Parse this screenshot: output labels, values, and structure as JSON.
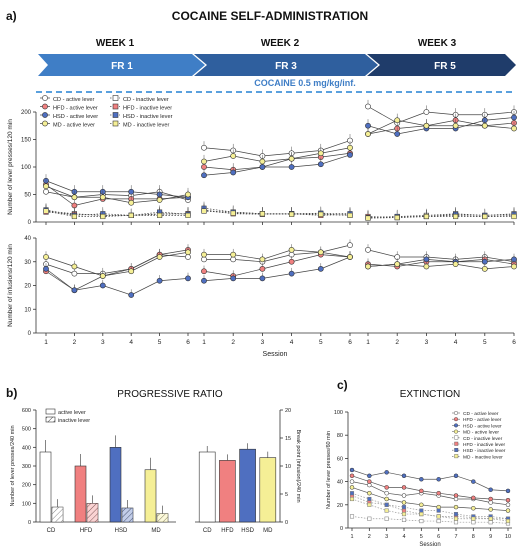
{
  "panel_labels": {
    "a": "a)",
    "b": "b)",
    "c": "c)"
  },
  "main_title": "COCAINE SELF-ADMINISTRATION",
  "weeks": [
    "WEEK 1",
    "WEEK 2",
    "WEEK 3"
  ],
  "fr_labels": [
    "FR 1",
    "FR 3",
    "FR 5"
  ],
  "dose_label": "COCAINE 0.5 mg/kg/inf.",
  "colors": {
    "CD": "#ffffff",
    "HFD": "#f08080",
    "HSD": "#4f6fc0",
    "MD": "#f5ef96",
    "banner_start": "#3d7cc4",
    "banner_end": "#1e3a66",
    "dashed": "#5aa0dd"
  },
  "legend_a": [
    "CD  - active lever",
    "CD  - inactive lever",
    "HFD - active lever",
    "HFD - inactive lever",
    "HSD - active lever",
    "HSD - inactive lever",
    "MD  - active lever",
    "MD  - inactive lever"
  ],
  "chart_data": [
    {
      "type": "line",
      "id": "lever-presses",
      "ylabel": "Number of lever presses/120 min",
      "ylim": [
        0,
        200
      ],
      "yticks": [
        0,
        50,
        100,
        150,
        200
      ],
      "x": [
        1,
        2,
        3,
        4,
        5,
        6
      ],
      "weeks": [
        {
          "series": [
            {
              "name": "CD - active lever",
              "values": [
                55,
                45,
                50,
                48,
                55,
                40
              ]
            },
            {
              "name": "HFD - active lever",
              "values": [
                68,
                30,
                42,
                42,
                42,
                45
              ]
            },
            {
              "name": "HSD - active lever",
              "values": [
                75,
                55,
                55,
                55,
                50,
                45
              ]
            },
            {
              "name": "MD - active lever",
              "values": [
                65,
                45,
                45,
                35,
                40,
                50
              ]
            },
            {
              "name": "CD - inactive lever",
              "values": [
                20,
                15,
                12,
                12,
                15,
                15
              ]
            },
            {
              "name": "HFD - inactive lever",
              "values": [
                18,
                14,
                12,
                12,
                14,
                15
              ]
            },
            {
              "name": "HSD - inactive lever",
              "values": [
                22,
                12,
                15,
                12,
                18,
                14
              ]
            },
            {
              "name": "MD - inactive lever",
              "values": [
                20,
                10,
                10,
                12,
                12,
                12
              ]
            }
          ]
        },
        {
          "series": [
            {
              "name": "CD - active lever",
              "values": [
                135,
                130,
                120,
                125,
                130,
                148
              ]
            },
            {
              "name": "HFD - active lever",
              "values": [
                100,
                95,
                100,
                115,
                118,
                125
              ]
            },
            {
              "name": "HSD - active lever",
              "values": [
                85,
                90,
                100,
                100,
                105,
                122
              ]
            },
            {
              "name": "MD - active lever",
              "values": [
                110,
                120,
                110,
                115,
                125,
                135
              ]
            },
            {
              "name": "CD - inactive lever",
              "values": [
                20,
                18,
                15,
                15,
                15,
                12
              ]
            },
            {
              "name": "HFD - inactive lever",
              "values": [
                22,
                15,
                14,
                15,
                12,
                14
              ]
            },
            {
              "name": "HSD - inactive lever",
              "values": [
                25,
                18,
                15,
                15,
                16,
                15
              ]
            },
            {
              "name": "MD - inactive lever",
              "values": [
                20,
                16,
                15,
                14,
                14,
                12
              ]
            }
          ]
        },
        {
          "series": [
            {
              "name": "CD - active lever",
              "values": [
                210,
                180,
                200,
                195,
                195,
                200
              ]
            },
            {
              "name": "HFD - active lever",
              "values": [
                160,
                170,
                175,
                185,
                175,
                180
              ]
            },
            {
              "name": "HSD - active lever",
              "values": [
                175,
                160,
                170,
                170,
                185,
                190
              ]
            },
            {
              "name": "MD - active lever",
              "values": [
                160,
                185,
                175,
                175,
                175,
                170
              ]
            },
            {
              "name": "CD - inactive lever",
              "values": [
                8,
                10,
                12,
                15,
                12,
                15
              ]
            },
            {
              "name": "HFD - inactive lever",
              "values": [
                10,
                8,
                10,
                12,
                10,
                12
              ]
            },
            {
              "name": "HSD - inactive lever",
              "values": [
                8,
                10,
                10,
                14,
                12,
                14
              ]
            },
            {
              "name": "MD - inactive lever",
              "values": [
                7,
                8,
                10,
                10,
                10,
                10
              ]
            }
          ]
        }
      ]
    },
    {
      "type": "line",
      "id": "infusions",
      "ylabel": "Number of infusions/120 min",
      "xlabel": "Session",
      "ylim": [
        0,
        40
      ],
      "yticks": [
        0,
        10,
        20,
        30,
        40
      ],
      "x": [
        1,
        2,
        3,
        4,
        5,
        6
      ],
      "weeks": [
        {
          "series": [
            {
              "name": "CD",
              "values": [
                29,
                25,
                25,
                27,
                33,
                32
              ]
            },
            {
              "name": "HFD",
              "values": [
                26,
                18,
                24,
                27,
                33,
                35
              ]
            },
            {
              "name": "HSD",
              "values": [
                27,
                18,
                20,
                16,
                22,
                23
              ]
            },
            {
              "name": "MD",
              "values": [
                32,
                28,
                24,
                26,
                32,
                34
              ]
            }
          ]
        },
        {
          "series": [
            {
              "name": "CD",
              "values": [
                31,
                31,
                30,
                33,
                34,
                37
              ]
            },
            {
              "name": "HFD",
              "values": [
                26,
                24,
                27,
                30,
                33,
                32
              ]
            },
            {
              "name": "HSD",
              "values": [
                22,
                23,
                23,
                25,
                27,
                32
              ]
            },
            {
              "name": "MD",
              "values": [
                33,
                33,
                31,
                35,
                34,
                32
              ]
            }
          ]
        },
        {
          "series": [
            {
              "name": "CD",
              "values": [
                35,
                32,
                32,
                31,
                32,
                30
              ]
            },
            {
              "name": "HFD",
              "values": [
                29,
                28,
                30,
                30,
                31,
                29
              ]
            },
            {
              "name": "HSD",
              "values": [
                28,
                29,
                31,
                30,
                30,
                31
              ]
            },
            {
              "name": "MD",
              "values": [
                28,
                29,
                28,
                29,
                27,
                28
              ]
            }
          ]
        }
      ]
    },
    {
      "type": "bar",
      "id": "progressive-ratio-presses",
      "title": "PROGRESSIVE RATIO",
      "ylabel": "Number of lever presses/240 min",
      "ylim": [
        0,
        600
      ],
      "yticks": [
        0,
        100,
        200,
        300,
        400,
        500,
        600
      ],
      "categories": [
        "CD",
        "HFD",
        "HSD",
        "MD"
      ],
      "series": [
        {
          "name": "active lever",
          "values": [
            375,
            300,
            400,
            280
          ]
        },
        {
          "name": "inactive lever",
          "values": [
            80,
            100,
            75,
            45
          ]
        }
      ]
    },
    {
      "type": "bar",
      "id": "progressive-ratio-breakpoint",
      "ylabel": "Break point (infusion)/240 min",
      "ylim": [
        0,
        20
      ],
      "yticks": [
        0,
        5,
        10,
        15,
        20
      ],
      "categories": [
        "CD",
        "HFD",
        "HSD",
        "MD"
      ],
      "values": [
        12.5,
        11,
        13,
        11.5
      ]
    },
    {
      "type": "line",
      "id": "extinction",
      "title": "EXTINCTION",
      "ylabel": "Number of lever presses/60 min",
      "xlabel": "Session",
      "ylim": [
        0,
        100
      ],
      "yticks": [
        0,
        20,
        40,
        60,
        80,
        100
      ],
      "x": [
        1,
        2,
        3,
        4,
        5,
        6,
        7,
        8,
        9,
        10
      ],
      "series": [
        {
          "name": "CD  - active lever",
          "values": [
            40,
            37,
            30,
            28,
            30,
            28,
            25,
            25,
            22,
            20
          ]
        },
        {
          "name": "HFD - active lever",
          "values": [
            45,
            40,
            35,
            35,
            32,
            30,
            28,
            26,
            25,
            24
          ]
        },
        {
          "name": "HSD - active lever",
          "values": [
            50,
            45,
            48,
            45,
            42,
            42,
            45,
            40,
            33,
            32
          ]
        },
        {
          "name": "MD  - active lever",
          "values": [
            35,
            30,
            25,
            22,
            20,
            18,
            18,
            17,
            16,
            15
          ]
        },
        {
          "name": "CD  - inactive lever",
          "values": [
            10,
            8,
            8,
            7,
            6,
            6,
            5,
            5,
            5,
            4
          ]
        },
        {
          "name": "HFD - inactive lever",
          "values": [
            28,
            22,
            20,
            15,
            12,
            10,
            10,
            9,
            8,
            8
          ]
        },
        {
          "name": "HSD - inactive lever",
          "values": [
            30,
            25,
            20,
            18,
            15,
            15,
            12,
            10,
            10,
            8
          ]
        },
        {
          "name": "MD  - inactive lever",
          "values": [
            25,
            20,
            15,
            12,
            12,
            10,
            8,
            8,
            8,
            6
          ]
        }
      ]
    }
  ]
}
